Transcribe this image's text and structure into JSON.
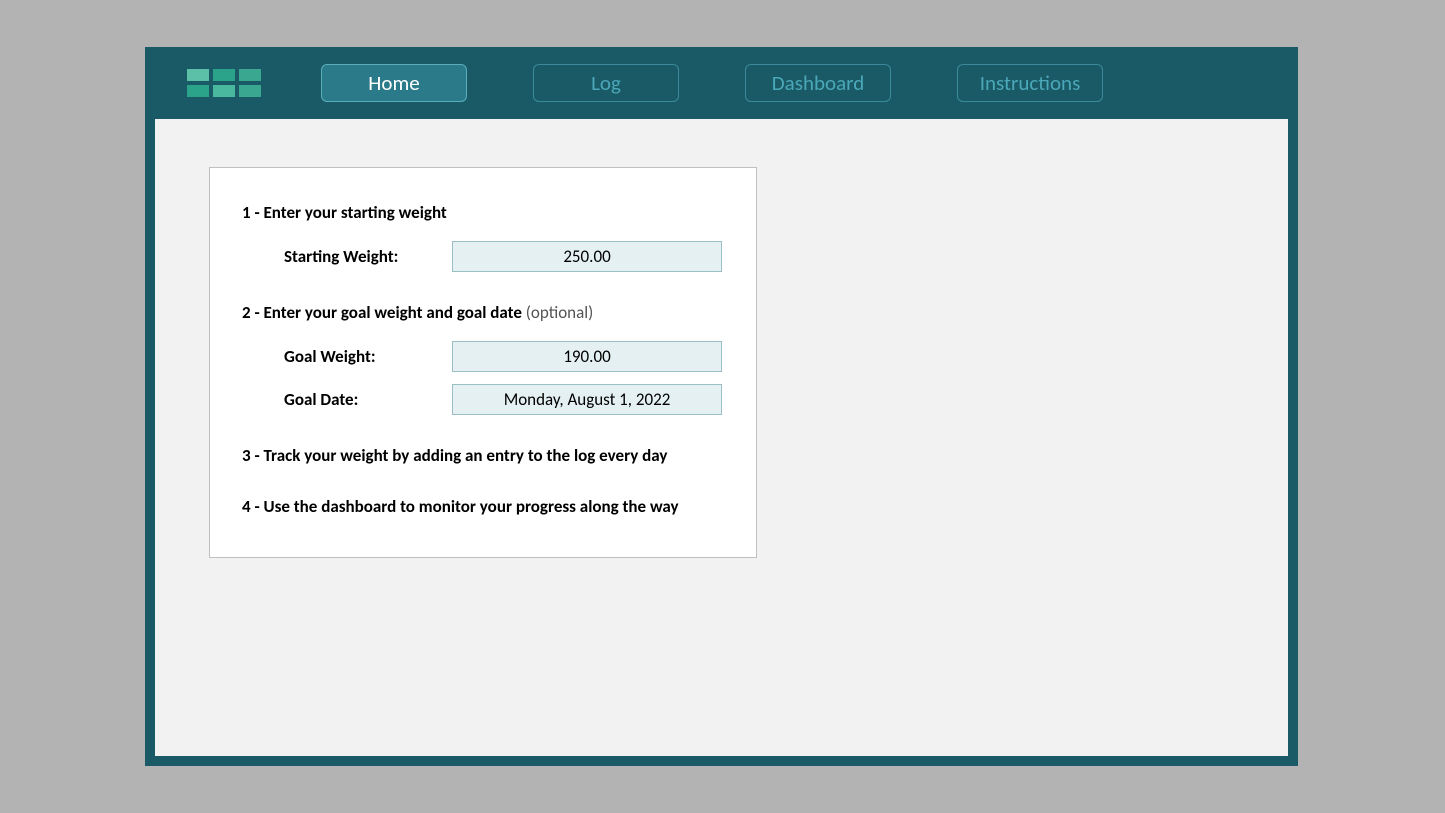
{
  "colors": {
    "page_bg": "#b3b3b3",
    "frame_bg": "#1a5a66",
    "content_bg": "#f2f2f2",
    "panel_bg": "#ffffff",
    "panel_border": "#c0c0c0",
    "input_bg": "#e4f0f2",
    "input_border": "#9bbfc6",
    "tab_border": "#3b8a99",
    "tab_text": "#4aa8b8",
    "tab_active_bg": "#2a7a8a",
    "tab_active_text": "#ffffff"
  },
  "logo_cells": [
    "#5cbfa8",
    "#2aa38a",
    "#3aa890",
    "#2aa38a",
    "#4ab89e",
    "#3aa890"
  ],
  "nav": {
    "tabs": [
      {
        "label": "Home",
        "active": true
      },
      {
        "label": "Log",
        "active": false
      },
      {
        "label": "Dashboard",
        "active": false
      },
      {
        "label": "Instructions",
        "active": false
      }
    ]
  },
  "form": {
    "step1": {
      "heading": "1 - Enter your starting weight",
      "starting_weight_label": "Starting Weight:",
      "starting_weight_value": "250.00"
    },
    "step2": {
      "heading_main": "2 - Enter your goal weight and goal date",
      "heading_optional": "  (optional)",
      "goal_weight_label": "Goal Weight:",
      "goal_weight_value": "190.00",
      "goal_date_label": "Goal Date:",
      "goal_date_value": "Monday, August 1, 2022"
    },
    "step3": {
      "heading": "3 - Track your weight by adding an entry to the log every day"
    },
    "step4": {
      "heading": "4 - Use the dashboard to monitor your progress along the way"
    }
  }
}
